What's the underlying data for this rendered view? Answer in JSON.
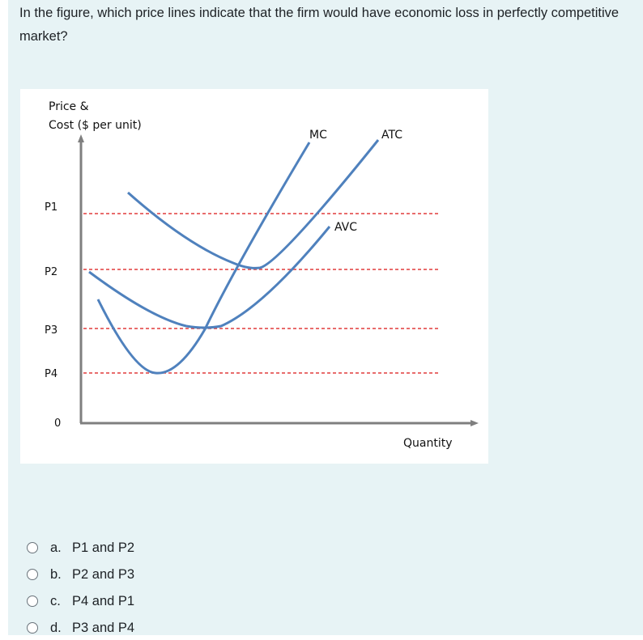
{
  "question": {
    "text": "In the figure, which price lines indicate that the firm would have economic loss in perfectly competitive market?"
  },
  "figure": {
    "y_axis_label_line1": "Price &",
    "y_axis_label_line2": "Cost ($ per unit)",
    "x_axis_label": "Quantity",
    "origin_label": "0",
    "price_labels": [
      "P1",
      "P2",
      "P3",
      "P4"
    ],
    "curve_labels": {
      "mc": "MC",
      "atc": "ATC",
      "avc": "AVC"
    },
    "colors": {
      "curve": "#4f81bd",
      "price_line": "#e03c3c",
      "axis": "#7f7f7f"
    }
  },
  "answers": [
    {
      "letter": "a.",
      "text": "P1 and P2"
    },
    {
      "letter": "b.",
      "text": "P2 and P3"
    },
    {
      "letter": "c.",
      "text": "P4 and P1"
    },
    {
      "letter": "d.",
      "text": "P3 and P4"
    }
  ]
}
